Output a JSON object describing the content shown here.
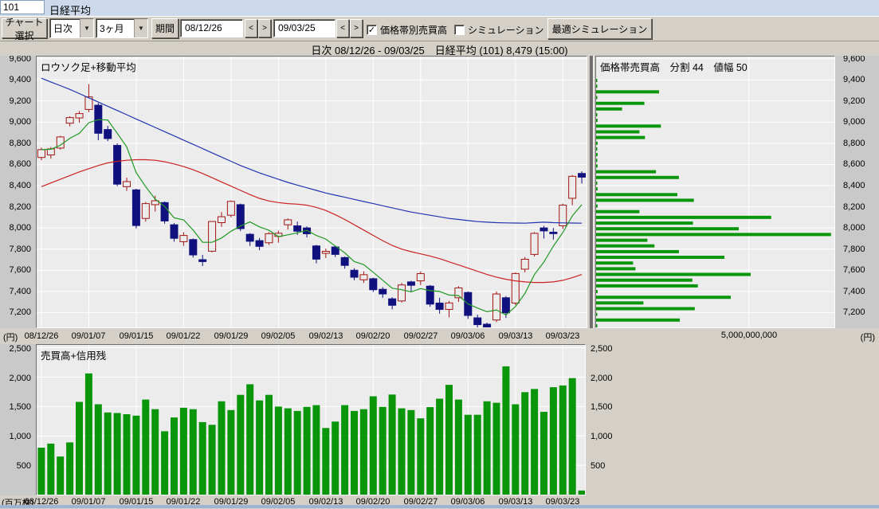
{
  "window": {
    "code": "101",
    "title": "日経平均"
  },
  "toolbar": {
    "chart_select": "チャート選択",
    "period_type": "日次",
    "period_span": "3ヶ月",
    "period_label": "期間",
    "date_from": "08/12/26",
    "date_to": "09/03/25",
    "prev": "<",
    "next": ">",
    "vbp_checkbox": "価格帯別売買高",
    "vbp_checked": true,
    "sim_checkbox": "シミュレーション",
    "sim_checked": false,
    "optimal_sim_button": "最適シミュレーション"
  },
  "status_line": "日次 08/12/26 - 09/03/25　日経平均 (101)  8,479 (15:00)",
  "colors": {
    "up_candle": "#a21515",
    "down_candle": "#10107e",
    "ma_blue": "#2233b0",
    "ma_red": "#cc2222",
    "ma_green": "#1f9922",
    "bar_green": "#0a960a",
    "plot_bg": "#ececec",
    "grid": "#ffffff"
  },
  "chart_data": {
    "candlestick": {
      "type": "candlestick+line",
      "title": "ロウソク足+移動平均",
      "unit": "(円)",
      "ylim": [
        7060,
        9620
      ],
      "y_ticks": [
        9600,
        9400,
        9200,
        9000,
        8800,
        8600,
        8400,
        8200,
        8000,
        7800,
        7600,
        7400,
        7200
      ],
      "x_tick_indices": [
        0,
        5,
        10,
        15,
        20,
        25,
        30,
        35,
        40,
        45,
        50,
        55
      ],
      "x_tick_labels": [
        "08/12/26",
        "09/01/07",
        "09/01/15",
        "09/01/22",
        "09/01/29",
        "09/02/05",
        "09/02/13",
        "09/02/20",
        "09/02/27",
        "09/03/06",
        "09/03/13",
        "09/03/23"
      ],
      "ohlc": [
        [
          8666,
          8760,
          8640,
          8740
        ],
        [
          8690,
          8765,
          8655,
          8747
        ],
        [
          8755,
          8870,
          8740,
          8860
        ],
        [
          8990,
          9055,
          8960,
          9043
        ],
        [
          9040,
          9105,
          8995,
          9081
        ],
        [
          9120,
          9360,
          9095,
          9239
        ],
        [
          9160,
          9180,
          8830,
          8895
        ],
        [
          8930,
          8965,
          8820,
          8845
        ],
        [
          8780,
          8800,
          8395,
          8414
        ],
        [
          8390,
          8475,
          8350,
          8438
        ],
        [
          8360,
          8370,
          7995,
          8023
        ],
        [
          8090,
          8245,
          8060,
          8230
        ],
        [
          8220,
          8305,
          8155,
          8257
        ],
        [
          8240,
          8250,
          8040,
          8066
        ],
        [
          8030,
          8045,
          7870,
          7902
        ],
        [
          7870,
          7960,
          7830,
          7929
        ],
        [
          7890,
          7900,
          7720,
          7745
        ],
        [
          7700,
          7745,
          7640,
          7682
        ],
        [
          7780,
          8065,
          7770,
          8061
        ],
        [
          8050,
          8150,
          8010,
          8106
        ],
        [
          8120,
          8260,
          8100,
          8251
        ],
        [
          8220,
          8230,
          7970,
          7994
        ],
        [
          7940,
          7950,
          7830,
          7874
        ],
        [
          7880,
          7905,
          7790,
          7826
        ],
        [
          7860,
          7960,
          7840,
          7946
        ],
        [
          7920,
          7975,
          7860,
          7950
        ],
        [
          8030,
          8090,
          7985,
          8077
        ],
        [
          8020,
          8060,
          7935,
          7969
        ],
        [
          8000,
          8015,
          7910,
          7945
        ],
        [
          7830,
          7840,
          7665,
          7705
        ],
        [
          7760,
          7805,
          7715,
          7779
        ],
        [
          7820,
          7830,
          7725,
          7750
        ],
        [
          7720,
          7730,
          7615,
          7646
        ],
        [
          7600,
          7620,
          7505,
          7534
        ],
        [
          7510,
          7590,
          7480,
          7558
        ],
        [
          7520,
          7530,
          7395,
          7416
        ],
        [
          7420,
          7440,
          7340,
          7376
        ],
        [
          7330,
          7345,
          7230,
          7269
        ],
        [
          7310,
          7480,
          7295,
          7461
        ],
        [
          7490,
          7500,
          7400,
          7458
        ],
        [
          7500,
          7590,
          7460,
          7568
        ],
        [
          7450,
          7460,
          7255,
          7280
        ],
        [
          7290,
          7340,
          7190,
          7230
        ],
        [
          7230,
          7310,
          7155,
          7291
        ],
        [
          7340,
          7450,
          7300,
          7433
        ],
        [
          7390,
          7400,
          7140,
          7173
        ],
        [
          7150,
          7180,
          7055,
          7086
        ],
        [
          7090,
          7105,
          7021,
          7055
        ],
        [
          7130,
          7400,
          7110,
          7376
        ],
        [
          7340,
          7355,
          7150,
          7198
        ],
        [
          7290,
          7580,
          7270,
          7569
        ],
        [
          7610,
          7725,
          7580,
          7704
        ],
        [
          7750,
          7960,
          7730,
          7949
        ],
        [
          8000,
          8020,
          7900,
          7972
        ],
        [
          7960,
          8000,
          7890,
          7946
        ],
        [
          8020,
          8230,
          7990,
          8216
        ],
        [
          8280,
          8500,
          8215,
          8488
        ],
        [
          8515,
          8535,
          8420,
          8480
        ]
      ],
      "ma_green_window": 5,
      "ma_red": [
        8390,
        8425,
        8460,
        8495,
        8530,
        8560,
        8590,
        8615,
        8630,
        8640,
        8645,
        8645,
        8640,
        8625,
        8605,
        8580,
        8550,
        8515,
        8475,
        8435,
        8395,
        8355,
        8315,
        8280,
        8255,
        8240,
        8230,
        8225,
        8215,
        8195,
        8165,
        8125,
        8080,
        8030,
        7980,
        7930,
        7880,
        7835,
        7800,
        7775,
        7755,
        7735,
        7710,
        7680,
        7650,
        7620,
        7590,
        7560,
        7535,
        7515,
        7500,
        7490,
        7485,
        7485,
        7490,
        7505,
        7530,
        7560
      ],
      "ma_blue": [
        9415,
        9380,
        9345,
        9310,
        9270,
        9230,
        9190,
        9150,
        9110,
        9070,
        9030,
        8990,
        8950,
        8910,
        8870,
        8830,
        8790,
        8750,
        8710,
        8670,
        8630,
        8590,
        8555,
        8520,
        8490,
        8460,
        8430,
        8405,
        8380,
        8355,
        8330,
        8310,
        8290,
        8270,
        8250,
        8230,
        8210,
        8190,
        8170,
        8150,
        8135,
        8120,
        8105,
        8090,
        8080,
        8070,
        8060,
        8055,
        8050,
        8048,
        8046,
        8045,
        8050,
        8055,
        8050,
        8048,
        8046,
        8045
      ]
    },
    "volume_by_price": {
      "type": "bar-horizontal",
      "title": "価格帯売買高　分割 44　値幅 50",
      "unit": "(円)",
      "x_axis_label": "5,000,000,000",
      "xlim_billion": [
        0,
        7.8
      ],
      "gridline_billion": 5,
      "bars_billion": [
        0.03,
        0.04,
        2.06,
        0.04,
        1.58,
        0.85,
        0.04,
        0.05,
        2.12,
        1.42,
        1.6,
        0.05,
        0.04,
        0.05,
        0.04,
        0.05,
        1.96,
        2.71,
        0.04,
        0.05,
        2.66,
        3.2,
        0.05,
        1.42,
        5.73,
        3.17,
        4.67,
        7.69,
        1.68,
        1.91,
        2.71,
        4.2,
        1.21,
        1.29,
        5.06,
        3.15,
        3.33,
        0.05,
        4.41,
        1.55,
        3.23,
        0.04,
        2.74,
        0.03
      ]
    },
    "volume": {
      "type": "bar",
      "title": "売買高+信用残",
      "unit": "(百万株)",
      "ylim": [
        0,
        2550
      ],
      "y_ticks": [
        2500,
        2000,
        1500,
        1000,
        500
      ],
      "values_million": [
        800,
        870,
        650,
        890,
        1580,
        2065,
        1540,
        1400,
        1390,
        1370,
        1345,
        1620,
        1455,
        1080,
        1315,
        1480,
        1455,
        1235,
        1190,
        1590,
        1440,
        1700,
        1880,
        1605,
        1700,
        1500,
        1470,
        1425,
        1495,
        1525,
        1135,
        1245,
        1525,
        1425,
        1455,
        1675,
        1495,
        1705,
        1470,
        1440,
        1300,
        1490,
        1635,
        1870,
        1620,
        1360,
        1360,
        1590,
        1565,
        2185,
        1540,
        1745,
        1800,
        1410,
        1830,
        1860,
        1985,
        70
      ]
    }
  }
}
